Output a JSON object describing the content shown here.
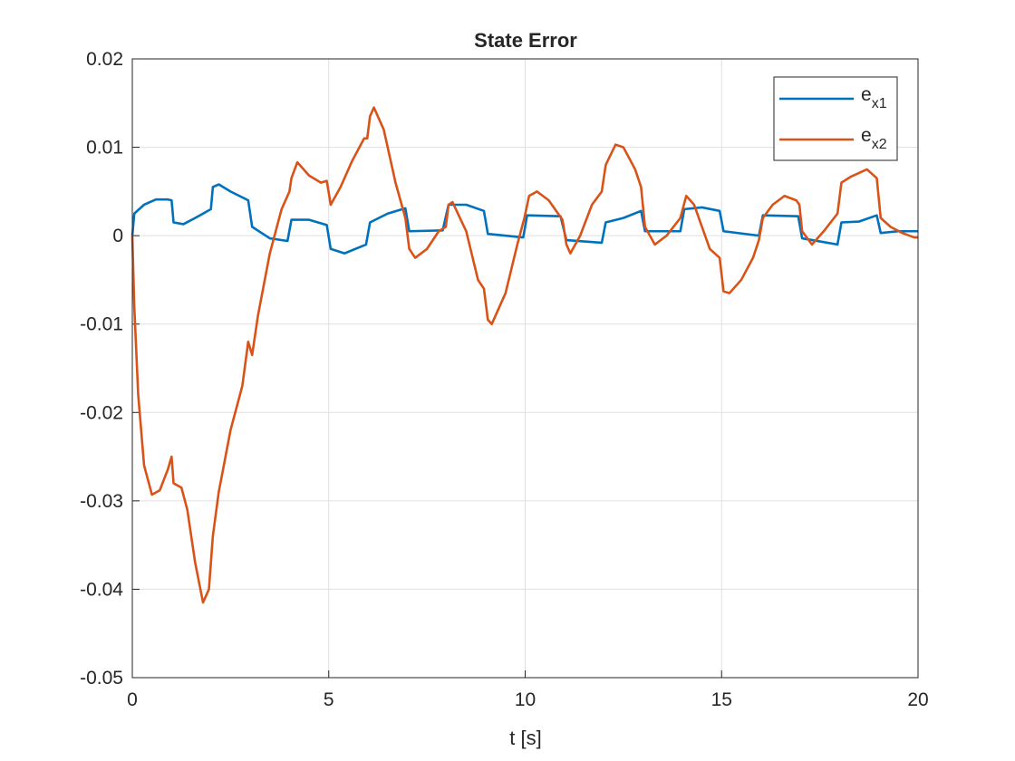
{
  "chart_data": {
    "type": "line",
    "title": "State Error",
    "x_label": "t [s]",
    "xlim": [
      0,
      20
    ],
    "ylim": [
      -0.05,
      0.02
    ],
    "xticks": [
      0,
      5,
      10,
      15,
      20
    ],
    "yticks": [
      -0.05,
      -0.04,
      -0.03,
      -0.02,
      -0.01,
      0,
      0.01,
      0.02
    ],
    "grid": true,
    "legend": "upper-right",
    "series": [
      {
        "name": "ex1",
        "color": "#0072BD",
        "x": [
          0,
          0.05,
          0.3,
          0.6,
          0.9,
          1.0,
          1.05,
          1.3,
          1.6,
          2.0,
          2.05,
          2.2,
          2.5,
          2.95,
          3.05,
          3.5,
          3.95,
          4.05,
          4.5,
          4.95,
          5.05,
          5.4,
          5.95,
          6.05,
          6.5,
          6.95,
          7.05,
          7.9,
          8.05,
          8.5,
          8.95,
          9.05,
          9.95,
          10.05,
          10.9,
          11.05,
          11.95,
          12.05,
          12.5,
          12.95,
          13.05,
          13.95,
          14.05,
          14.5,
          14.95,
          15.05,
          15.95,
          16.05,
          16.95,
          17.05,
          17.95,
          18.05,
          18.5,
          18.95,
          19.05,
          19.5,
          20
        ],
        "values": [
          0,
          0.0025,
          0.0035,
          0.0041,
          0.0041,
          0.004,
          0.0015,
          0.0013,
          0.002,
          0.003,
          0.0055,
          0.0058,
          0.005,
          0.004,
          0.001,
          -0.0003,
          -0.0006,
          0.0018,
          0.0018,
          0.0012,
          -0.0015,
          -0.002,
          -0.001,
          0.0015,
          0.0025,
          0.0031,
          0.0005,
          0.0006,
          0.0035,
          0.0035,
          0.0028,
          0.0002,
          -0.0002,
          0.0023,
          0.0022,
          -0.0005,
          -0.0008,
          0.0015,
          0.002,
          0.0028,
          0.0005,
          0.0005,
          0.003,
          0.0032,
          0.0028,
          0.0005,
          0,
          0.0023,
          0.0022,
          -0.0003,
          -0.001,
          0.0015,
          0.0016,
          0.0023,
          0.0003,
          0.0005,
          0.0005
        ]
      },
      {
        "name": "ex2",
        "color": "#D95319",
        "x": [
          0,
          0.05,
          0.15,
          0.3,
          0.5,
          0.7,
          0.9,
          1.0,
          1.05,
          1.25,
          1.4,
          1.6,
          1.8,
          1.95,
          2.05,
          2.2,
          2.5,
          2.8,
          2.95,
          3.05,
          3.2,
          3.5,
          3.8,
          4.0,
          4.05,
          4.2,
          4.5,
          4.8,
          4.95,
          5.05,
          5.3,
          5.6,
          5.9,
          5.98,
          6.05,
          6.15,
          6.4,
          6.7,
          6.95,
          7.05,
          7.2,
          7.5,
          7.8,
          7.98,
          8.05,
          8.15,
          8.5,
          8.8,
          8.95,
          9.05,
          9.15,
          9.5,
          9.8,
          9.98,
          10.1,
          10.3,
          10.6,
          10.95,
          11.05,
          11.15,
          11.4,
          11.7,
          11.95,
          12.05,
          12.3,
          12.5,
          12.8,
          12.95,
          13.05,
          13.3,
          13.6,
          13.95,
          14.1,
          14.3,
          14.7,
          14.95,
          15.05,
          15.2,
          15.5,
          15.8,
          15.95,
          16.05,
          16.3,
          16.6,
          16.9,
          16.98,
          17.05,
          17.3,
          17.6,
          17.95,
          18.05,
          18.3,
          18.7,
          18.95,
          19.05,
          19.3,
          19.6,
          19.9,
          20
        ],
        "values": [
          0,
          -0.008,
          -0.018,
          -0.026,
          -0.0293,
          -0.0288,
          -0.0265,
          -0.025,
          -0.028,
          -0.0285,
          -0.031,
          -0.037,
          -0.0415,
          -0.04,
          -0.034,
          -0.029,
          -0.022,
          -0.017,
          -0.012,
          -0.0135,
          -0.009,
          -0.002,
          0.003,
          0.005,
          0.0065,
          0.0083,
          0.0068,
          0.006,
          0.0062,
          0.0035,
          0.0055,
          0.0085,
          0.011,
          0.011,
          0.0135,
          0.0145,
          0.012,
          0.006,
          0.002,
          -0.0015,
          -0.0025,
          -0.0015,
          0.0005,
          0.001,
          0.0035,
          0.0038,
          0.0005,
          -0.005,
          -0.006,
          -0.0095,
          -0.01,
          -0.0065,
          -0.001,
          0.002,
          0.0045,
          0.005,
          0.004,
          0.0018,
          -0.001,
          -0.002,
          0,
          0.0035,
          0.005,
          0.008,
          0.0103,
          0.01,
          0.0075,
          0.0055,
          0.001,
          -0.001,
          0,
          0.002,
          0.0045,
          0.0035,
          -0.0015,
          -0.0025,
          -0.0063,
          -0.0065,
          -0.005,
          -0.0025,
          -0.0005,
          0.002,
          0.0035,
          0.0045,
          0.004,
          0.0035,
          0.0005,
          -0.001,
          0.0005,
          0.0025,
          0.006,
          0.0067,
          0.0075,
          0.0065,
          0.002,
          0.001,
          0.0003,
          -0.0002,
          -0.0002
        ]
      }
    ]
  }
}
